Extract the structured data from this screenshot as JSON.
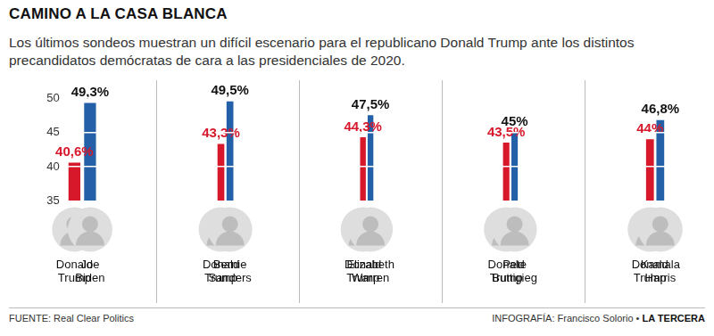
{
  "title": "CAMINO A LA CASA BLANCA",
  "subtitle": "Los últimos sondeos muestran un difícil escenario para el republicano Donald Trump ante los distintos precandidatos demócratas de cara a las presidenciales de 2020.",
  "source": "FUENTE: Real Clear Politics",
  "credit": "INFOGRAFÍA: Francisco Solorio •",
  "publisher": "LA TERCERA",
  "chart_data": [
    {
      "type": "bar",
      "categories": [
        "Donald Trump",
        "Joe Biden"
      ],
      "values": [
        40.6,
        49.3
      ],
      "value_labels": [
        "40,6%",
        "49,3%"
      ],
      "colors": [
        "#d7182a",
        "#2360a8"
      ],
      "ylim": [
        35,
        50
      ],
      "yticks": [
        35,
        40,
        45,
        50
      ],
      "grid": true,
      "data_labels": true
    },
    {
      "type": "bar",
      "categories": [
        "Donald Trump",
        "Bernie Sanders"
      ],
      "values": [
        43.3,
        49.5
      ],
      "value_labels": [
        "43,3%",
        "49,5%"
      ],
      "colors": [
        "#d7182a",
        "#2360a8"
      ],
      "ylim": [
        35,
        50
      ],
      "yticks": [
        35,
        40,
        45,
        50
      ],
      "grid": true,
      "data_labels": true,
      "tick_labels": "x"
    },
    {
      "type": "bar",
      "categories": [
        "Donald Trump",
        "Elizabeth Warren"
      ],
      "values": [
        44.3,
        47.5
      ],
      "value_labels": [
        "44,3%",
        "47,5%"
      ],
      "colors": [
        "#d7182a",
        "#2360a8"
      ],
      "ylim": [
        35,
        50
      ],
      "yticks": [
        35,
        40,
        45,
        50
      ],
      "grid": true,
      "data_labels": true,
      "tick_labels": "x"
    },
    {
      "type": "bar",
      "categories": [
        "Donald Trump",
        "Pete Buttigieg"
      ],
      "values": [
        43.5,
        45
      ],
      "value_labels": [
        "43,5%",
        "45%"
      ],
      "colors": [
        "#d7182a",
        "#2360a8"
      ],
      "ylim": [
        35,
        50
      ],
      "yticks": [
        35,
        40,
        45,
        50
      ],
      "grid": true,
      "data_labels": true,
      "tick_labels": "x"
    },
    {
      "type": "bar",
      "categories": [
        "Donald Trump",
        "Kamala Harris"
      ],
      "values": [
        44,
        46.8
      ],
      "value_labels": [
        "44%",
        "46,8%"
      ],
      "colors": [
        "#d7182a",
        "#2360a8"
      ],
      "ylim": [
        35,
        50
      ],
      "yticks": [
        35,
        40,
        45,
        50
      ],
      "grid": true,
      "data_labels": true,
      "tick_labels": "x"
    }
  ]
}
